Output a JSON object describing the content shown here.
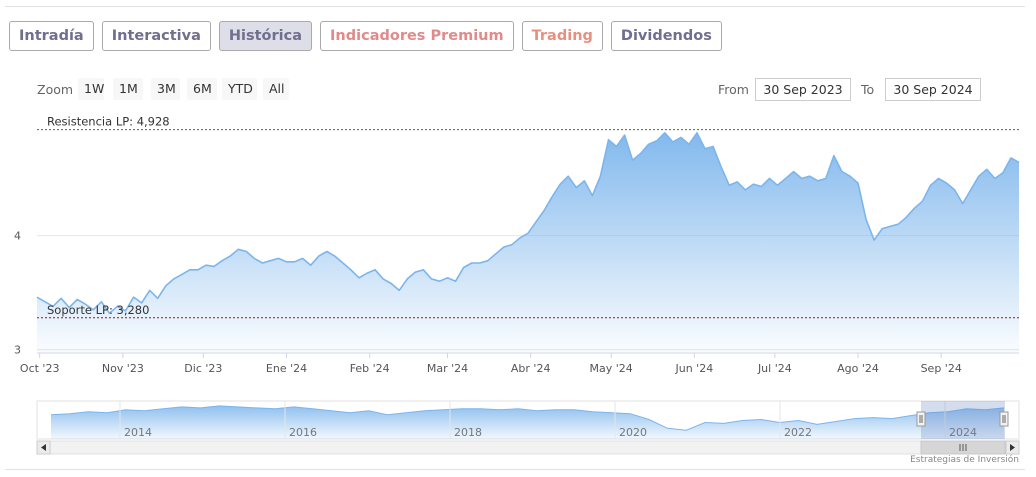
{
  "tabs": [
    {
      "label": "Intradía",
      "active": false,
      "style": "default"
    },
    {
      "label": "Interactiva",
      "active": false,
      "style": "default"
    },
    {
      "label": "Histórica",
      "active": true,
      "style": "default"
    },
    {
      "label": "Indicadores Premium",
      "active": false,
      "style": "premium"
    },
    {
      "label": "Trading",
      "active": false,
      "style": "trading"
    },
    {
      "label": "Dividendos",
      "active": false,
      "style": "default"
    }
  ],
  "range_selector": {
    "zoom_label": "Zoom",
    "buttons": [
      "1W",
      "1M",
      "3M",
      "6M",
      "YTD",
      "All"
    ],
    "from_label": "From",
    "from_value": "30 Sep 2023",
    "to_label": "To",
    "to_value": "30 Sep 2024"
  },
  "credit": "Estrategias de Inversión",
  "colors": {
    "line": "#7cb5ec",
    "resistance_line": "#2e7d32",
    "support_line": "#8b1a1a",
    "tab_text": "#6f6f8f",
    "tab_premium": "#e08a8a"
  },
  "chart_data": {
    "type": "area",
    "x_unit": "date",
    "x_range": [
      "2023-09-30",
      "2024-09-30"
    ],
    "ylim": [
      2.98,
      5.1
    ],
    "y_ticks": [
      {
        "value": 3,
        "label": "3"
      },
      {
        "value": 4,
        "label": "4"
      }
    ],
    "x_ticks": [
      {
        "date": "2023-10-01",
        "label": "Oct '23"
      },
      {
        "date": "2023-11-01",
        "label": "Nov '23"
      },
      {
        "date": "2023-12-01",
        "label": "Dic '23"
      },
      {
        "date": "2024-01-01",
        "label": "Ene '24"
      },
      {
        "date": "2024-02-01",
        "label": "Feb '24"
      },
      {
        "date": "2024-03-01",
        "label": "Mar '24"
      },
      {
        "date": "2024-04-01",
        "label": "Abr '24"
      },
      {
        "date": "2024-05-01",
        "label": "May '24"
      },
      {
        "date": "2024-06-01",
        "label": "Jun '24"
      },
      {
        "date": "2024-07-01",
        "label": "Jul '24"
      },
      {
        "date": "2024-08-01",
        "label": "Ago '24"
      },
      {
        "date": "2024-09-01",
        "label": "Sep '24"
      }
    ],
    "reference_lines": [
      {
        "label": "Resistencia LP: 4,928",
        "value": 4.928,
        "style": "resistance"
      },
      {
        "label": "Soporte LP: 3,280",
        "value": 3.28,
        "style": "support"
      }
    ],
    "grid": true,
    "series": [
      {
        "values": [
          [
            "2023-09-30",
            3.46
          ],
          [
            "2023-10-03",
            3.42
          ],
          [
            "2023-10-06",
            3.38
          ],
          [
            "2023-10-09",
            3.45
          ],
          [
            "2023-10-12",
            3.37
          ],
          [
            "2023-10-15",
            3.44
          ],
          [
            "2023-10-18",
            3.4
          ],
          [
            "2023-10-21",
            3.35
          ],
          [
            "2023-10-24",
            3.42
          ],
          [
            "2023-10-27",
            3.32
          ],
          [
            "2023-10-30",
            3.38
          ],
          [
            "2023-11-02",
            3.34
          ],
          [
            "2023-11-05",
            3.46
          ],
          [
            "2023-11-08",
            3.41
          ],
          [
            "2023-11-11",
            3.52
          ],
          [
            "2023-11-14",
            3.45
          ],
          [
            "2023-11-17",
            3.56
          ],
          [
            "2023-11-20",
            3.62
          ],
          [
            "2023-11-23",
            3.66
          ],
          [
            "2023-11-26",
            3.7
          ],
          [
            "2023-11-29",
            3.7
          ],
          [
            "2023-12-02",
            3.74
          ],
          [
            "2023-12-05",
            3.73
          ],
          [
            "2023-12-08",
            3.78
          ],
          [
            "2023-12-11",
            3.82
          ],
          [
            "2023-12-14",
            3.88
          ],
          [
            "2023-12-17",
            3.86
          ],
          [
            "2023-12-20",
            3.8
          ],
          [
            "2023-12-23",
            3.76
          ],
          [
            "2023-12-26",
            3.78
          ],
          [
            "2023-12-29",
            3.8
          ],
          [
            "2024-01-01",
            3.77
          ],
          [
            "2024-01-04",
            3.77
          ],
          [
            "2024-01-07",
            3.8
          ],
          [
            "2024-01-10",
            3.74
          ],
          [
            "2024-01-13",
            3.82
          ],
          [
            "2024-01-16",
            3.86
          ],
          [
            "2024-01-19",
            3.82
          ],
          [
            "2024-01-22",
            3.76
          ],
          [
            "2024-01-25",
            3.7
          ],
          [
            "2024-01-28",
            3.63
          ],
          [
            "2024-01-31",
            3.67
          ],
          [
            "2024-02-03",
            3.7
          ],
          [
            "2024-02-06",
            3.62
          ],
          [
            "2024-02-09",
            3.58
          ],
          [
            "2024-02-12",
            3.52
          ],
          [
            "2024-02-15",
            3.62
          ],
          [
            "2024-02-18",
            3.68
          ],
          [
            "2024-02-21",
            3.7
          ],
          [
            "2024-02-24",
            3.62
          ],
          [
            "2024-02-27",
            3.6
          ],
          [
            "2024-03-01",
            3.63
          ],
          [
            "2024-03-04",
            3.6
          ],
          [
            "2024-03-07",
            3.72
          ],
          [
            "2024-03-10",
            3.76
          ],
          [
            "2024-03-13",
            3.76
          ],
          [
            "2024-03-16",
            3.78
          ],
          [
            "2024-03-19",
            3.84
          ],
          [
            "2024-03-22",
            3.9
          ],
          [
            "2024-03-25",
            3.92
          ],
          [
            "2024-03-28",
            3.98
          ],
          [
            "2024-03-31",
            4.02
          ],
          [
            "2024-04-03",
            4.12
          ],
          [
            "2024-04-06",
            4.22
          ],
          [
            "2024-04-09",
            4.34
          ],
          [
            "2024-04-12",
            4.45
          ],
          [
            "2024-04-15",
            4.52
          ],
          [
            "2024-04-18",
            4.42
          ],
          [
            "2024-04-21",
            4.48
          ],
          [
            "2024-04-24",
            4.35
          ],
          [
            "2024-04-27",
            4.52
          ],
          [
            "2024-04-30",
            4.84
          ],
          [
            "2024-05-03",
            4.78
          ],
          [
            "2024-05-06",
            4.88
          ],
          [
            "2024-05-09",
            4.66
          ],
          [
            "2024-05-12",
            4.72
          ],
          [
            "2024-05-15",
            4.8
          ],
          [
            "2024-05-18",
            4.83
          ],
          [
            "2024-05-21",
            4.9
          ],
          [
            "2024-05-24",
            4.82
          ],
          [
            "2024-05-27",
            4.86
          ],
          [
            "2024-05-30",
            4.8
          ],
          [
            "2024-06-02",
            4.9
          ],
          [
            "2024-06-05",
            4.76
          ],
          [
            "2024-06-08",
            4.78
          ],
          [
            "2024-06-11",
            4.6
          ],
          [
            "2024-06-14",
            4.44
          ],
          [
            "2024-06-17",
            4.47
          ],
          [
            "2024-06-20",
            4.4
          ],
          [
            "2024-06-23",
            4.45
          ],
          [
            "2024-06-26",
            4.43
          ],
          [
            "2024-06-29",
            4.5
          ],
          [
            "2024-07-02",
            4.44
          ],
          [
            "2024-07-05",
            4.5
          ],
          [
            "2024-07-08",
            4.56
          ],
          [
            "2024-07-11",
            4.5
          ],
          [
            "2024-07-14",
            4.52
          ],
          [
            "2024-07-17",
            4.48
          ],
          [
            "2024-07-20",
            4.5
          ],
          [
            "2024-07-23",
            4.7
          ],
          [
            "2024-07-26",
            4.56
          ],
          [
            "2024-07-29",
            4.52
          ],
          [
            "2024-08-01",
            4.46
          ],
          [
            "2024-08-04",
            4.14
          ],
          [
            "2024-08-07",
            3.96
          ],
          [
            "2024-08-10",
            4.06
          ],
          [
            "2024-08-13",
            4.08
          ],
          [
            "2024-08-16",
            4.1
          ],
          [
            "2024-08-19",
            4.16
          ],
          [
            "2024-08-22",
            4.24
          ],
          [
            "2024-08-25",
            4.3
          ],
          [
            "2024-08-28",
            4.44
          ],
          [
            "2024-08-31",
            4.5
          ],
          [
            "2024-09-03",
            4.46
          ],
          [
            "2024-09-06",
            4.4
          ],
          [
            "2024-09-09",
            4.28
          ],
          [
            "2024-09-12",
            4.4
          ],
          [
            "2024-09-15",
            4.52
          ],
          [
            "2024-09-18",
            4.58
          ],
          [
            "2024-09-21",
            4.5
          ],
          [
            "2024-09-24",
            4.55
          ],
          [
            "2024-09-27",
            4.68
          ],
          [
            "2024-09-30",
            4.64
          ]
        ]
      }
    ],
    "navigator": {
      "x_labels": [
        "2014",
        "2016",
        "2018",
        "2020",
        "2022",
        "2024"
      ],
      "values": [
        4.0,
        4.1,
        4.3,
        4.2,
        4.5,
        4.4,
        4.6,
        4.8,
        4.7,
        4.9,
        4.8,
        4.7,
        4.6,
        4.8,
        4.6,
        4.4,
        4.2,
        4.4,
        4.0,
        4.2,
        4.4,
        4.5,
        4.6,
        4.6,
        4.5,
        4.6,
        4.4,
        4.5,
        4.5,
        4.3,
        4.2,
        4.1,
        3.5,
        2.6,
        2.4,
        3.2,
        3.1,
        3.4,
        3.5,
        3.2,
        3.4,
        3.0,
        3.3,
        3.6,
        3.7,
        3.6,
        3.9,
        4.2,
        4.3,
        4.6,
        4.5,
        4.7
      ],
      "selection": {
        "from": "2023-09-30",
        "to": "2024-09-30"
      }
    }
  }
}
